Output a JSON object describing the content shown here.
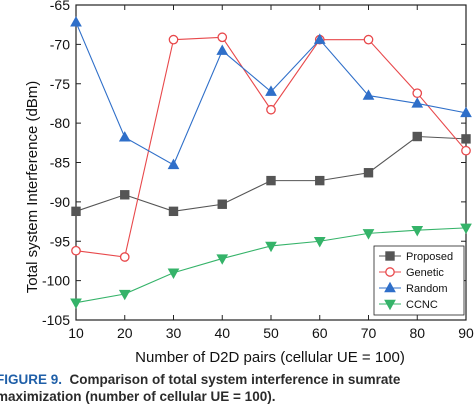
{
  "figure": {
    "caption_label": "FIGURE 9.",
    "caption_text": "Comparison of total system interference in sumrate",
    "caption_line2": "maximization (number of cellular UE = 100)."
  },
  "chart_data": {
    "type": "line",
    "title": "",
    "xlabel": "Number of D2D pairs (cellular UE = 100)",
    "ylabel": "Total system Interference (dBm)",
    "x": [
      10,
      20,
      30,
      40,
      50,
      60,
      70,
      80,
      90
    ],
    "xlim": [
      10,
      90
    ],
    "ylim": [
      -105,
      -65
    ],
    "xticks": [
      10,
      20,
      30,
      40,
      50,
      60,
      70,
      80,
      90
    ],
    "yticks": [
      -65,
      -70,
      -75,
      -80,
      -85,
      -90,
      -95,
      -100,
      -105
    ],
    "grid": false,
    "legend_position": "lower-right",
    "series": [
      {
        "name": "Proposed",
        "color": "#555555",
        "marker": "square",
        "values": [
          -91.2,
          -89.1,
          -91.2,
          -90.3,
          -87.3,
          -87.3,
          -86.3,
          -81.7,
          -82.0
        ]
      },
      {
        "name": "Genetic",
        "color": "#e8484b",
        "marker": "circle",
        "values": [
          -96.2,
          -97.0,
          -69.4,
          -69.1,
          -78.3,
          -69.4,
          -69.4,
          -76.2,
          -83.5
        ]
      },
      {
        "name": "Random",
        "color": "#2f6fc9",
        "marker": "triangle-up",
        "values": [
          -67.2,
          -81.8,
          -85.3,
          -70.8,
          -76.0,
          -69.4,
          -76.5,
          -77.5,
          -78.7
        ]
      },
      {
        "name": "CCNC",
        "color": "#35b369",
        "marker": "triangle-down",
        "values": [
          -102.8,
          -101.7,
          -99.0,
          -97.2,
          -95.6,
          -95.0,
          -94.0,
          -93.6,
          -93.3
        ]
      }
    ]
  }
}
